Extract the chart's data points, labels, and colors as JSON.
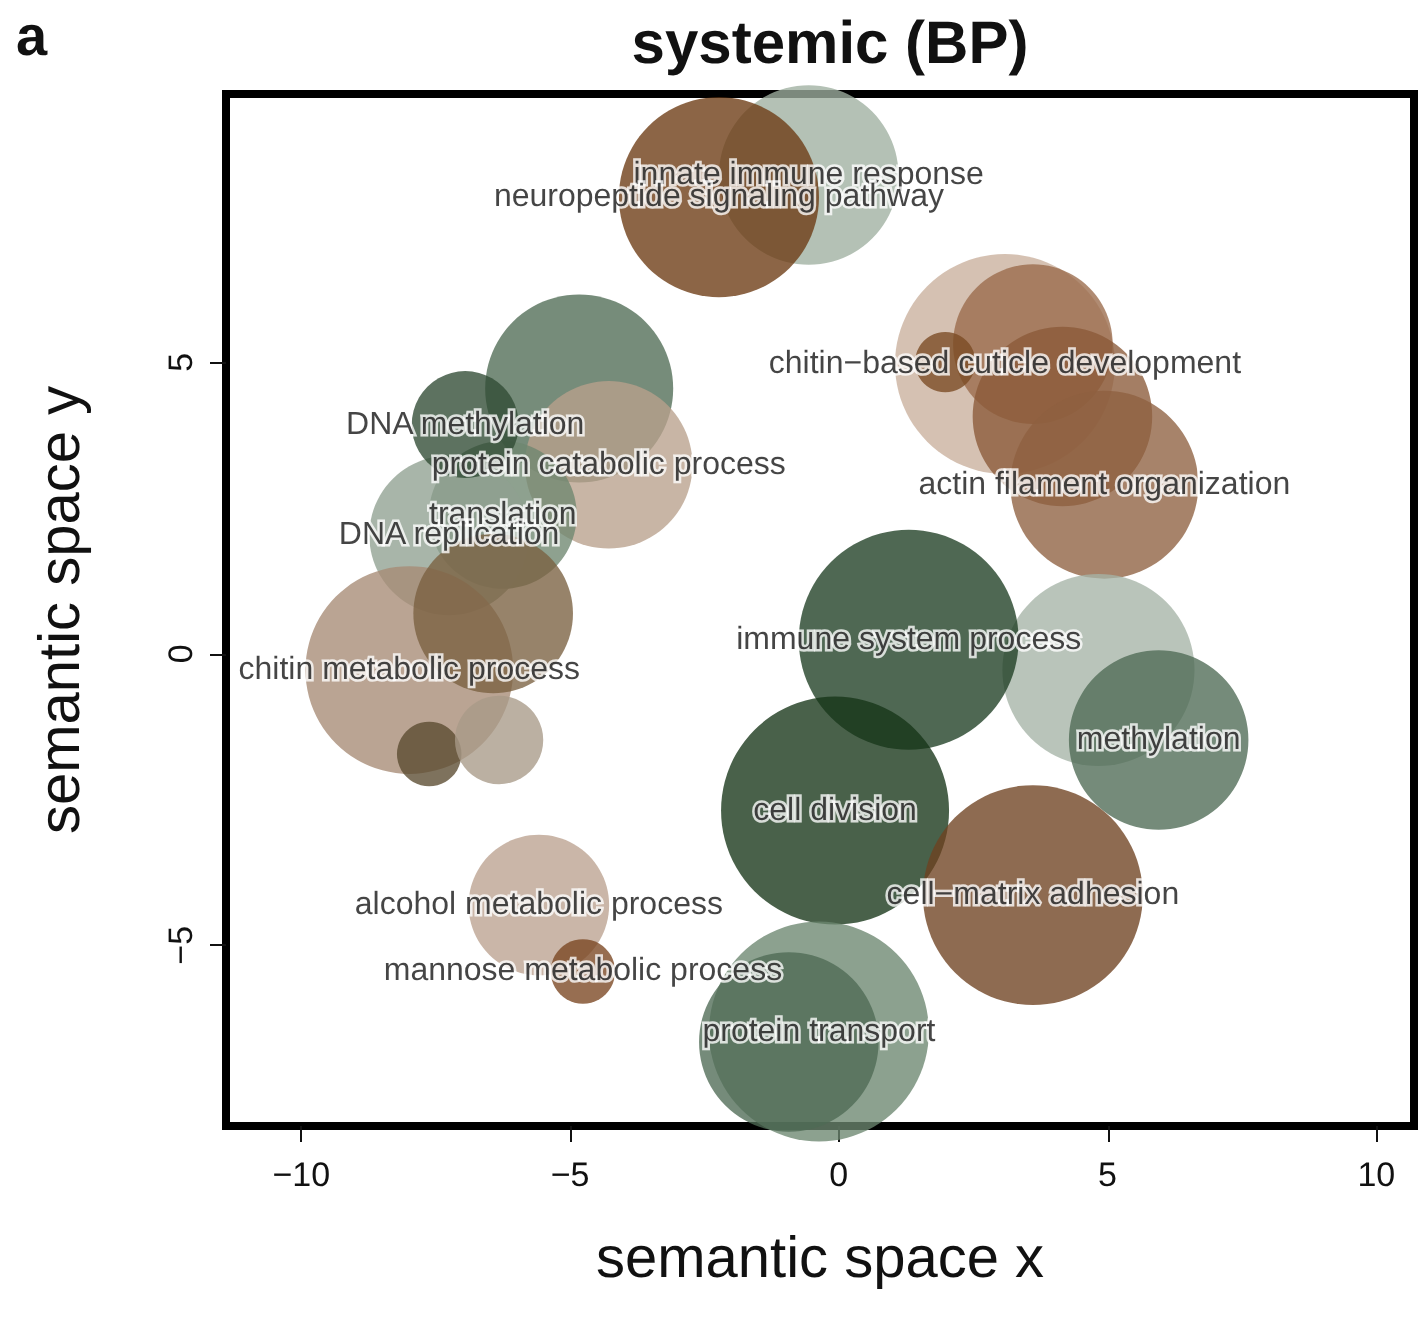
{
  "chart_data": {
    "type": "bubble",
    "title": "systemic (BP)",
    "xlabel": "semantic space x",
    "ylabel": "semantic space y",
    "annotations": [
      "a"
    ],
    "xlim": [
      -11.4,
      10.7
    ],
    "ylim": [
      -8.1,
      9.6
    ],
    "xticks": [
      -10,
      -5,
      0,
      5,
      10
    ],
    "yticks": [
      -5,
      0,
      5
    ],
    "x": [
      -0.56,
      -2.23,
      3.09,
      3.61,
      1.98,
      4.16,
      4.94,
      -4.83,
      -4.28,
      -6.25,
      -7.25,
      -6.95,
      -7.99,
      -6.43,
      -7.62,
      -6.32,
      4.83,
      1.3,
      5.95,
      -0.07,
      3.61,
      -5.58,
      -4.76,
      -0.37,
      -0.93
    ],
    "values": [
      8.21,
      7.83,
      4.97,
      5.31,
      5.0,
      4.07,
      2.9,
      4.55,
      3.24,
      2.38,
      2.03,
      3.93,
      -0.28,
      0.69,
      -1.72,
      -1.48,
      -0.28,
      0.24,
      -1.48,
      -2.69,
      -4.14,
      -4.31,
      -5.45,
      -6.48,
      -6.66
    ],
    "sizes": [
      0.62,
      0.77,
      0.93,
      0.49,
      0.07,
      0.62,
      0.68,
      0.68,
      0.54,
      0.42,
      0.49,
      0.22,
      0.83,
      0.49,
      0.08,
      0.15,
      0.71,
      0.93,
      0.62,
      1,
      0.93,
      0.38,
      0.08,
      0.93,
      0.62
    ],
    "colors": [
      "#9fb0a0",
      "#6b3a12",
      "#c9b09c",
      "#9a6a4a",
      "#7a4a22",
      "#8a5a38",
      "#8e6040",
      "#4f6b55",
      "#b8a08c",
      "#6e8670",
      "#8fa091",
      "#2f4a33",
      "#a68a74",
      "#7a6040",
      "#5a4a30",
      "#a89a88",
      "#a5b3a6",
      "#1e3d22",
      "#4e6a54",
      "#163517",
      "#6e4120",
      "#bba290",
      "#7a4520",
      "#6c8670",
      "#4e6a54"
    ],
    "value_labels": [
      "innate immune response",
      "neuropeptide signaling pathway",
      "chitin−based cuticle development",
      null,
      null,
      null,
      "actin filament organization",
      null,
      "protein catabolic process",
      "translation",
      "DNA replication",
      "DNA methylation",
      "chitin metabolic process",
      null,
      null,
      null,
      null,
      "immune system process",
      "methylation",
      "cell division",
      "cell−matrix adhesion",
      "alcohol metabolic process",
      "mannose metabolic process",
      "protein transport",
      null
    ]
  }
}
